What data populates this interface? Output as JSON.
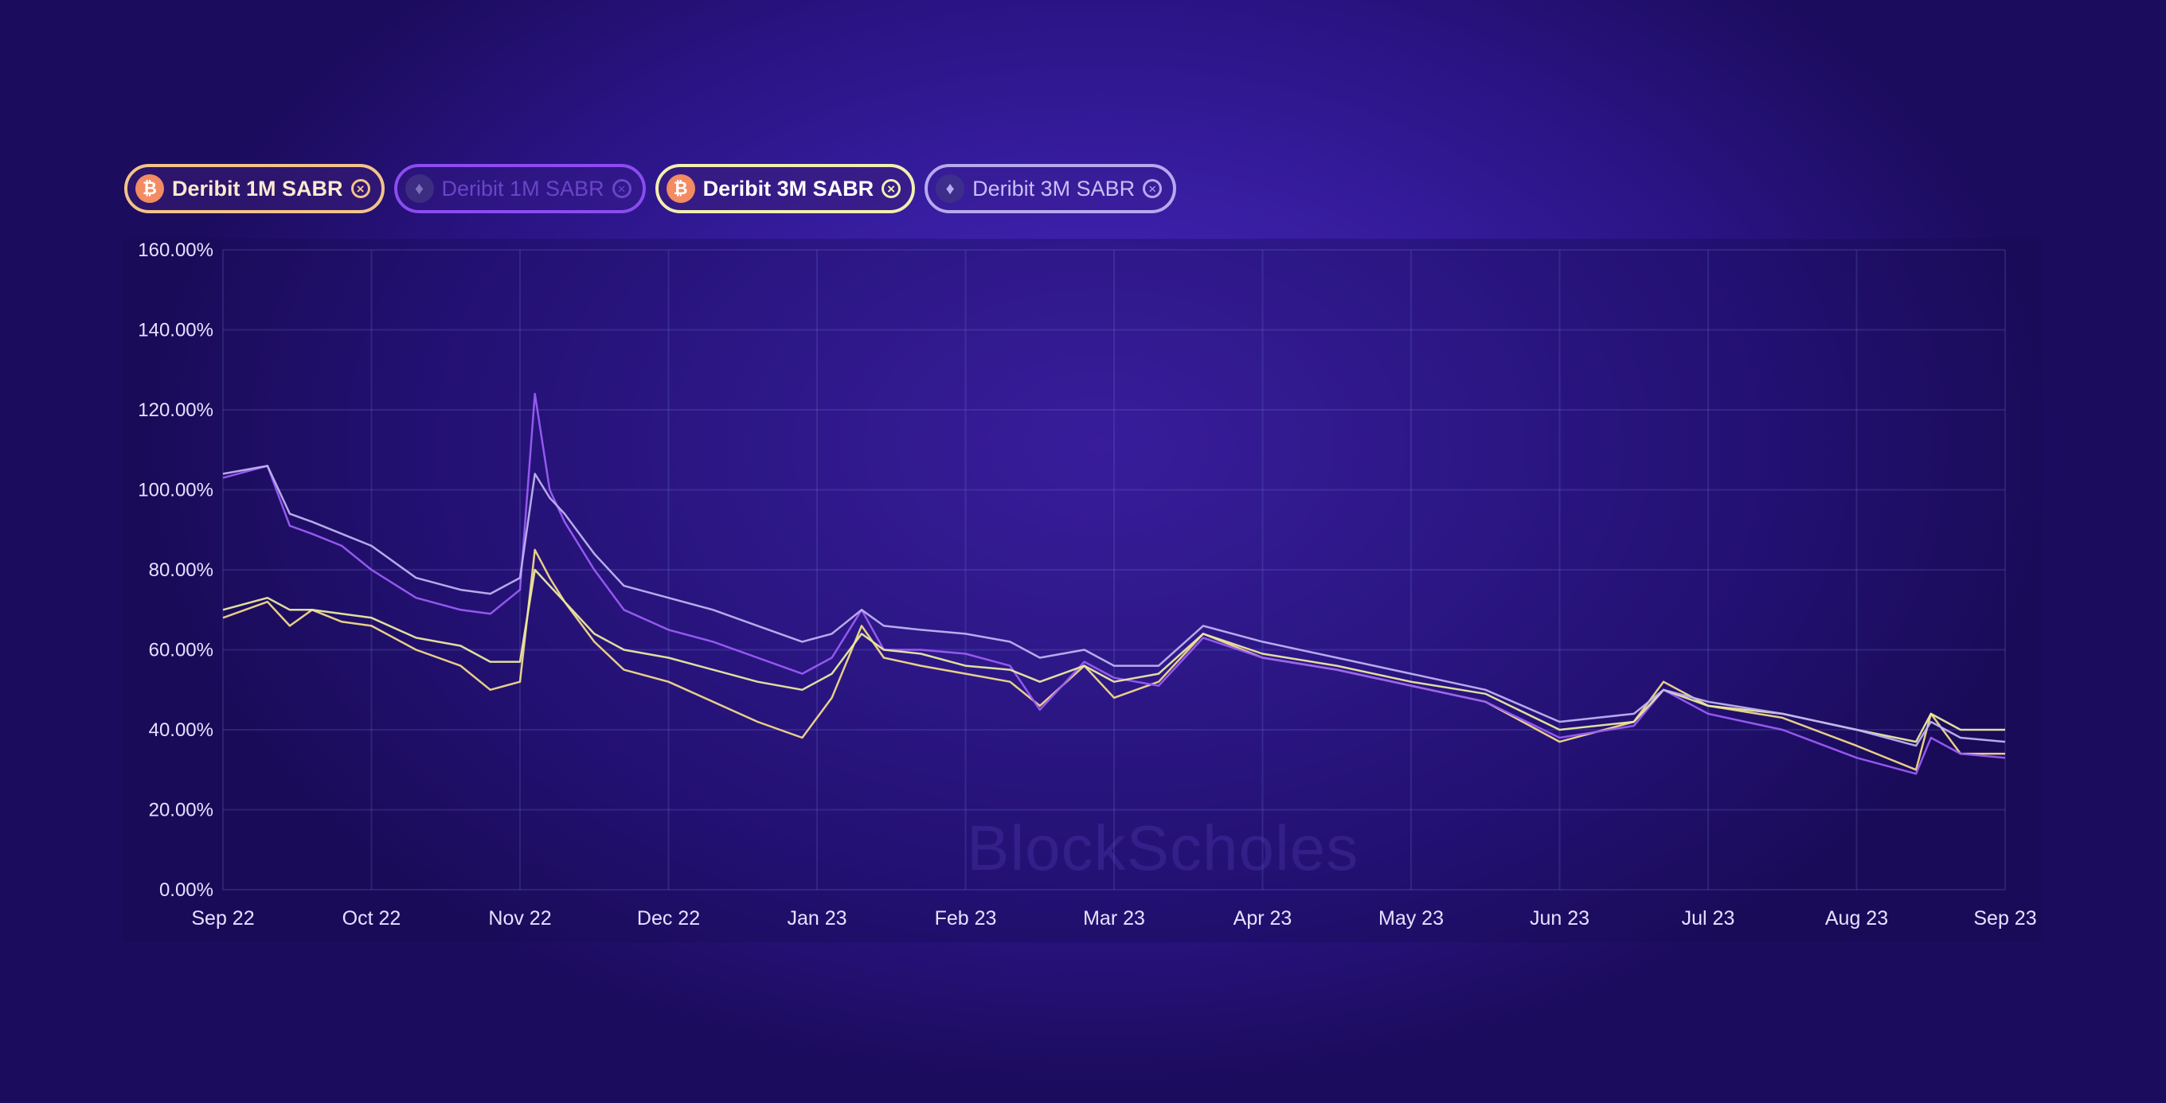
{
  "legend": [
    {
      "label": "Deribit 1M SABR",
      "coin": "bitcoin-icon",
      "coin_glyph": "₿",
      "active": true,
      "color": "#f3c38a"
    },
    {
      "label": "Deribit 1M SABR",
      "coin": "ethereum-icon",
      "coin_glyph": "♦",
      "active": false,
      "color": "#8b4cf0"
    },
    {
      "label": "Deribit 3M SABR",
      "coin": "bitcoin-icon",
      "coin_glyph": "₿",
      "active": true,
      "color": "#f2efb0"
    },
    {
      "label": "Deribit 3M SABR",
      "coin": "ethereum-icon",
      "coin_glyph": "♦",
      "active": true,
      "color": "#b7a9ee"
    }
  ],
  "close_glyph": "×",
  "watermark": "BlockScholes",
  "chart_data": {
    "type": "line",
    "ylim": [
      0,
      160
    ],
    "y_ticks": [
      0,
      20,
      40,
      60,
      80,
      100,
      120,
      140,
      160
    ],
    "y_tick_labels": [
      "0.00%",
      "20.00%",
      "40.00%",
      "60.00%",
      "80.00%",
      "100.00%",
      "120.00%",
      "140.00%",
      "160.00%"
    ],
    "x_ticks": [
      "Sep 22",
      "Oct 22",
      "Nov 22",
      "Dec 22",
      "Jan 23",
      "Feb 23",
      "Mar 23",
      "Apr 23",
      "May 23",
      "Jun 23",
      "Jul 23",
      "Aug 23",
      "Sep 23"
    ],
    "x_unit": "months since Sep 22",
    "grid": true,
    "legend_position": "top-left",
    "series": [
      {
        "name": "Deribit 1M SABR",
        "asset": "BTC",
        "color": "#f2d98a",
        "x": [
          0,
          0.3,
          0.45,
          0.6,
          0.8,
          1.0,
          1.3,
          1.6,
          1.8,
          2.0,
          2.1,
          2.2,
          2.3,
          2.5,
          2.7,
          3.0,
          3.3,
          3.6,
          3.9,
          4.1,
          4.3,
          4.45,
          4.7,
          5.0,
          5.3,
          5.5,
          5.8,
          6.0,
          6.3,
          6.6,
          7.0,
          7.5,
          8.0,
          8.5,
          9.0,
          9.5,
          9.7,
          10.0,
          10.5,
          11.0,
          11.4,
          11.5,
          11.7,
          12.0
        ],
        "y": [
          68,
          72,
          66,
          70,
          67,
          66,
          60,
          56,
          50,
          52,
          85,
          78,
          72,
          62,
          55,
          52,
          47,
          42,
          38,
          48,
          66,
          58,
          56,
          54,
          52,
          46,
          56,
          48,
          52,
          64,
          58,
          55,
          51,
          47,
          37,
          42,
          52,
          46,
          43,
          36,
          30,
          44,
          34,
          34
        ]
      },
      {
        "name": "Deribit 1M SABR",
        "asset": "ETH",
        "color": "#9a5cf5",
        "x": [
          0,
          0.3,
          0.45,
          0.6,
          0.8,
          1.0,
          1.3,
          1.6,
          1.8,
          2.0,
          2.1,
          2.2,
          2.3,
          2.5,
          2.7,
          3.0,
          3.3,
          3.6,
          3.9,
          4.1,
          4.3,
          4.45,
          4.7,
          5.0,
          5.3,
          5.5,
          5.8,
          6.0,
          6.3,
          6.6,
          7.0,
          7.5,
          8.0,
          8.5,
          9.0,
          9.5,
          9.7,
          10.0,
          10.5,
          11.0,
          11.4,
          11.5,
          11.7,
          12.0
        ],
        "y": [
          103,
          106,
          91,
          89,
          86,
          80,
          73,
          70,
          69,
          75,
          124,
          100,
          92,
          80,
          70,
          65,
          62,
          58,
          54,
          58,
          70,
          60,
          60,
          59,
          56,
          45,
          57,
          53,
          51,
          63,
          58,
          55,
          51,
          47,
          38,
          41,
          50,
          44,
          40,
          33,
          29,
          38,
          34,
          33
        ]
      },
      {
        "name": "Deribit 3M SABR",
        "asset": "BTC",
        "color": "#eaeaa0",
        "x": [
          0,
          0.3,
          0.45,
          0.6,
          0.8,
          1.0,
          1.3,
          1.6,
          1.8,
          2.0,
          2.1,
          2.2,
          2.3,
          2.5,
          2.7,
          3.0,
          3.3,
          3.6,
          3.9,
          4.1,
          4.3,
          4.45,
          4.7,
          5.0,
          5.3,
          5.5,
          5.8,
          6.0,
          6.3,
          6.6,
          7.0,
          7.5,
          8.0,
          8.5,
          9.0,
          9.5,
          9.7,
          10.0,
          10.5,
          11.0,
          11.4,
          11.5,
          11.7,
          12.0
        ],
        "y": [
          70,
          73,
          70,
          70,
          69,
          68,
          63,
          61,
          57,
          57,
          80,
          76,
          72,
          64,
          60,
          58,
          55,
          52,
          50,
          54,
          64,
          60,
          59,
          56,
          55,
          52,
          56,
          52,
          54,
          64,
          59,
          56,
          52,
          49,
          40,
          42,
          50,
          46,
          44,
          40,
          37,
          44,
          40,
          40
        ]
      },
      {
        "name": "Deribit 3M SABR",
        "asset": "ETH",
        "color": "#c0b2f2",
        "x": [
          0,
          0.3,
          0.45,
          0.6,
          0.8,
          1.0,
          1.3,
          1.6,
          1.8,
          2.0,
          2.1,
          2.2,
          2.3,
          2.5,
          2.7,
          3.0,
          3.3,
          3.6,
          3.9,
          4.1,
          4.3,
          4.45,
          4.7,
          5.0,
          5.3,
          5.5,
          5.8,
          6.0,
          6.3,
          6.6,
          7.0,
          7.5,
          8.0,
          8.5,
          9.0,
          9.5,
          9.7,
          10.0,
          10.5,
          11.0,
          11.4,
          11.5,
          11.7,
          12.0
        ],
        "y": [
          104,
          106,
          94,
          92,
          89,
          86,
          78,
          75,
          74,
          78,
          104,
          98,
          94,
          84,
          76,
          73,
          70,
          66,
          62,
          64,
          70,
          66,
          65,
          64,
          62,
          58,
          60,
          56,
          56,
          66,
          62,
          58,
          54,
          50,
          42,
          44,
          50,
          47,
          44,
          40,
          36,
          42,
          38,
          37
        ]
      }
    ]
  }
}
